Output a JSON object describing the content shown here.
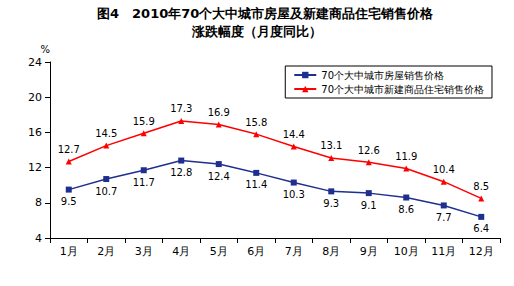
{
  "chart_data": {
    "type": "line",
    "title": "图4　2010年70个大中城市房屋及新建商品住宅销售价格",
    "subtitle": "涨跌幅度（月度同比）",
    "y_label": "%",
    "categories": [
      "1月",
      "2月",
      "3月",
      "4月",
      "5月",
      "6月",
      "7月",
      "8月",
      "9月",
      "10月",
      "11月",
      "12月"
    ],
    "series": [
      {
        "name": "70个大中城市房屋销售价格",
        "color": "#1f2f8f",
        "marker": "square",
        "values": [
          9.5,
          10.7,
          11.7,
          12.8,
          12.4,
          11.4,
          10.3,
          9.3,
          9.1,
          8.6,
          7.7,
          6.4
        ]
      },
      {
        "name": "70个大中城市新建商品住宅销售价格",
        "color": "#ff0000",
        "marker": "triangle",
        "values": [
          12.7,
          14.5,
          15.9,
          17.3,
          16.9,
          15.8,
          14.4,
          13.1,
          12.6,
          11.9,
          10.4,
          8.5
        ]
      }
    ],
    "ylim": [
      4,
      24
    ],
    "yticks": [
      4,
      8,
      12,
      16,
      20,
      24
    ],
    "grid": false,
    "legend": "top-right",
    "data_labels": true
  }
}
